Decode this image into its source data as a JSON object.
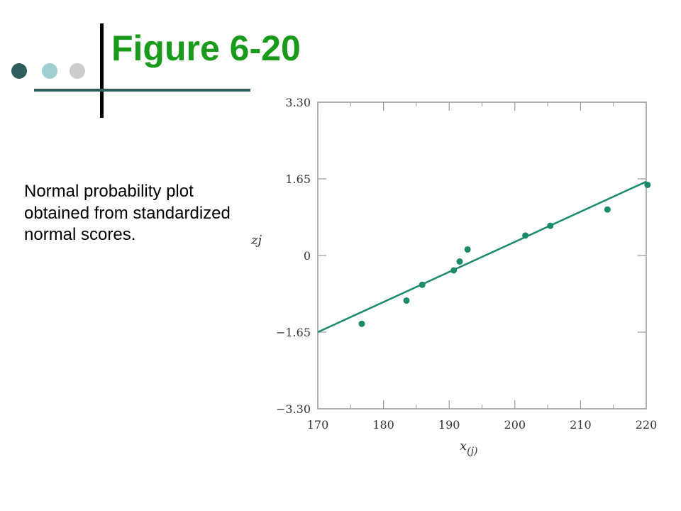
{
  "slide": {
    "title": "Figure 6-20",
    "caption": "Normal probability plot obtained from standardized normal scores.",
    "colors": {
      "title": "#1a9a1a",
      "accent_dark": "#2d5f5d",
      "accent_light": "#9fcfd3",
      "accent_gray": "#cccccc",
      "rule": "#2d5f5d",
      "series": "#1a8a6a"
    }
  },
  "chart_data": {
    "type": "scatter",
    "title": "",
    "xlabel_main": "x",
    "xlabel_sub": "(j)",
    "ylabel": "zj",
    "xlim": [
      170,
      220
    ],
    "ylim": [
      -3.3,
      3.3
    ],
    "x_ticks": [
      170,
      180,
      190,
      200,
      210,
      220
    ],
    "x_tick_labels": [
      "170",
      "180",
      "190",
      "200",
      "210",
      "220"
    ],
    "y_ticks": [
      3.3,
      1.65,
      0,
      -1.65,
      -3.3
    ],
    "y_tick_labels": [
      "3.30",
      "1.65",
      "0",
      "−1.65",
      "−3.30"
    ],
    "series": [
      {
        "x": [
          176.7,
          183.5,
          185.9,
          190.7,
          191.6,
          192.8,
          201.6,
          205.4,
          214.1,
          220.2
        ],
        "y": [
          -1.47,
          -0.97,
          -0.63,
          -0.32,
          -0.13,
          0.13,
          0.43,
          0.64,
          0.99,
          1.52
        ]
      }
    ],
    "fit_line": {
      "x": [
        170,
        220
      ],
      "y": [
        -1.65,
        1.59
      ]
    },
    "grid": false
  }
}
